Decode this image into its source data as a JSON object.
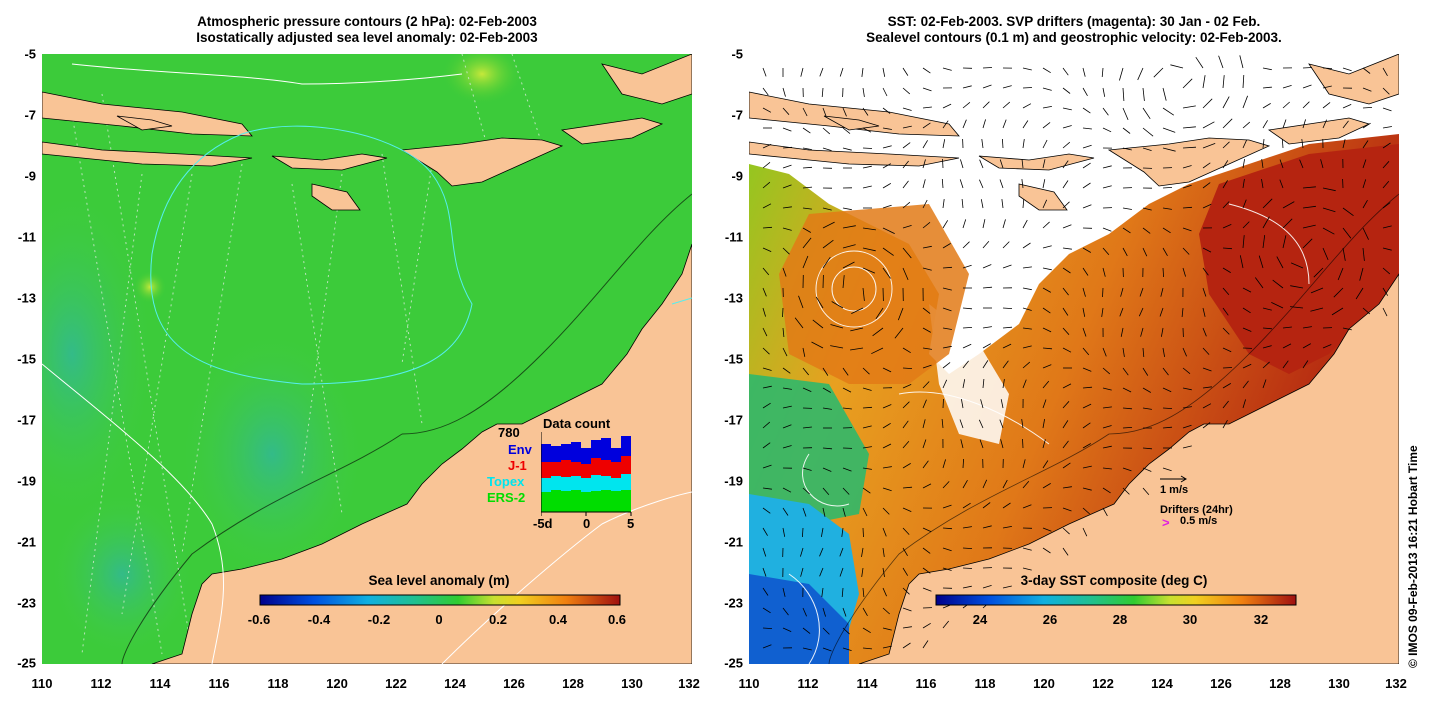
{
  "left_panel": {
    "title_line1": "Atmospheric pressure contours (2 hPa): 02-Feb-2003",
    "title_line2": "Isostatically adjusted sea level anomaly: 02-Feb-2003",
    "colorbar_label": "Sea level anomaly (m)",
    "colorbar_ticks": [
      "-0.6",
      "-0.4",
      "-0.2",
      "0",
      "0.2",
      "0.4",
      "0.6"
    ],
    "data_count": {
      "title": "Data count",
      "total": "780",
      "legend": [
        {
          "name": "Env",
          "color": "#0000dd"
        },
        {
          "name": "J-1",
          "color": "#ee0000"
        },
        {
          "name": "Topex",
          "color": "#00e5ee"
        },
        {
          "name": "ERS-2",
          "color": "#00dd00"
        }
      ],
      "x_ticks": [
        "-5d",
        "0",
        "5"
      ]
    }
  },
  "right_panel": {
    "title_line1": "SST: 02-Feb-2003. SVP drifters (magenta): 30 Jan - 02 Feb.",
    "title_line2": "Sealevel contours (0.1 m) and geostrophic velocity: 02-Feb-2003.",
    "colorbar_label": "3-day SST composite (deg C)",
    "colorbar_ticks": [
      "24",
      "26",
      "28",
      "30",
      "32"
    ],
    "velocity_scale_label": "1 m/s",
    "drifters_label": "Drifters (24hr)",
    "drifters_speed": "0.5 m/s",
    "drifter_symbol": ">"
  },
  "axes": {
    "x_ticks": [
      "110",
      "112",
      "114",
      "116",
      "118",
      "120",
      "122",
      "124",
      "126",
      "128",
      "130",
      "132"
    ],
    "y_ticks": [
      "-5",
      "-7",
      "-9",
      "-11",
      "-13",
      "-15",
      "-17",
      "-19",
      "-21",
      "-23",
      "-25"
    ]
  },
  "credit": "© IMOS 09-Feb-2013 16:21 Hobart Time",
  "colors": {
    "land": "#f9c496",
    "sea_green": "#33cc33",
    "sst_red": "#b52410",
    "sst_orange": "#e88a1a"
  }
}
